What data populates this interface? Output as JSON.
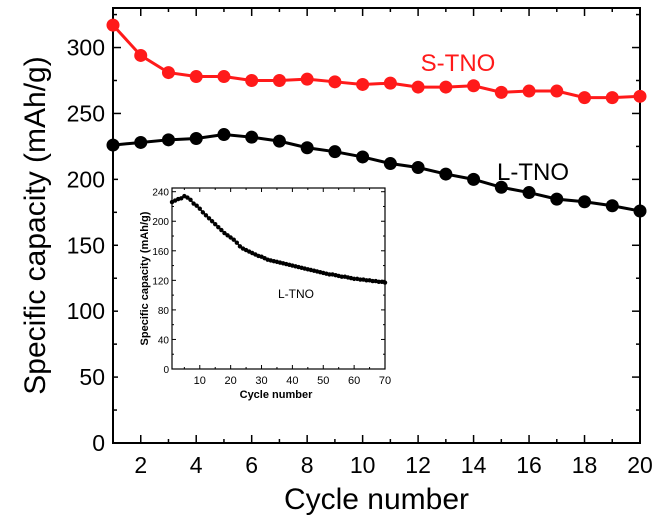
{
  "chart_data": [
    {
      "type": "line",
      "title": "",
      "xlabel": "Cycle number",
      "ylabel": "Specific capacity (mAh/g)",
      "xlim": [
        1,
        20
      ],
      "ylim": [
        0,
        330
      ],
      "x_ticks": [
        2,
        4,
        6,
        8,
        10,
        12,
        14,
        16,
        18,
        20
      ],
      "y_ticks": [
        0,
        50,
        100,
        150,
        200,
        250,
        300
      ],
      "grid": false,
      "x": [
        1,
        2,
        3,
        4,
        5,
        6,
        7,
        8,
        9,
        10,
        11,
        12,
        13,
        14,
        15,
        16,
        17,
        18,
        19,
        20
      ],
      "series": [
        {
          "name": "S-TNO",
          "color": "#ff1a1a",
          "marker": "circle",
          "values": [
            317,
            294,
            281,
            278,
            278,
            275,
            275,
            276,
            274,
            272,
            273,
            270,
            270,
            271,
            266,
            267,
            267,
            262,
            262,
            263
          ]
        },
        {
          "name": "L-TNO",
          "color": "#000000",
          "marker": "circle",
          "values": [
            226,
            228,
            230,
            231,
            234,
            232,
            229,
            224,
            221,
            217,
            212,
            209,
            204,
            200,
            194,
            190,
            185,
            183,
            180,
            176
          ]
        }
      ]
    },
    {
      "type": "line",
      "title": "",
      "inset": true,
      "xlabel": "Cycle number",
      "ylabel": "Specific capacity (mAh/g)",
      "xlim": [
        1,
        70
      ],
      "ylim": [
        0,
        245
      ],
      "x_ticks": [
        10,
        20,
        30,
        40,
        50,
        60,
        70
      ],
      "y_ticks": [
        0,
        40,
        80,
        120,
        160,
        200,
        240
      ],
      "grid": false,
      "series": [
        {
          "name": "L-TNO",
          "color": "#000000",
          "x": [
            1,
            2,
            3,
            4,
            5,
            6,
            7,
            8,
            9,
            10,
            11,
            12,
            13,
            14,
            15,
            16,
            17,
            18,
            19,
            20,
            21,
            22,
            23,
            24,
            25,
            26,
            27,
            28,
            29,
            30,
            31,
            32,
            33,
            34,
            35,
            36,
            37,
            38,
            39,
            40,
            41,
            42,
            43,
            44,
            45,
            46,
            47,
            48,
            49,
            50,
            51,
            52,
            53,
            54,
            55,
            56,
            57,
            58,
            59,
            60,
            61,
            62,
            63,
            64,
            65,
            66,
            67,
            68,
            69,
            70
          ],
          "values": [
            226,
            228,
            230,
            231,
            234,
            232,
            229,
            224,
            221,
            217,
            212,
            208,
            204,
            200,
            196,
            192,
            188,
            184,
            181,
            178,
            175,
            171,
            166,
            163,
            161,
            159,
            157,
            155,
            153,
            152,
            150,
            148,
            147,
            146,
            145,
            144,
            143,
            142,
            141,
            140,
            139,
            138,
            137,
            136,
            135,
            134,
            133,
            132,
            131,
            130,
            129,
            128,
            128,
            127,
            126,
            125,
            125,
            124,
            123,
            122,
            122,
            121,
            121,
            120,
            120,
            119,
            119,
            118,
            118,
            117
          ]
        }
      ]
    }
  ]
}
